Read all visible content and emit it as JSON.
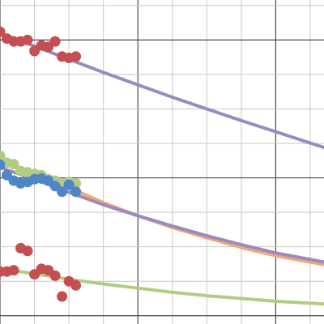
{
  "chart_data": {
    "type": "scatter",
    "title": "",
    "xlabel": "",
    "ylabel": "",
    "xlim": [
      0,
      23.5
    ],
    "ylim": [
      -0.6,
      22.9
    ],
    "grid": true,
    "minor_step": 2.5,
    "major_step": 10,
    "legend": "none",
    "colors": {
      "red": "#c44e52",
      "purple": "#9a8bbf",
      "orange": "#f2a774",
      "green": "#b3cc82",
      "blue": "#4f86c6"
    },
    "series": [
      {
        "color": "red",
        "points": [
          [
            0,
            20.6
          ],
          [
            0.5,
            20.1
          ],
          [
            1.0,
            19.9
          ],
          [
            1.5,
            19.9
          ],
          [
            2.0,
            20.0
          ],
          [
            2.5,
            19.2
          ],
          [
            3.0,
            19.6
          ],
          [
            3.5,
            19.5
          ],
          [
            4.0,
            19.9
          ],
          [
            4.5,
            18.8
          ],
          [
            5.0,
            18.7
          ],
          [
            5.5,
            18.8
          ]
        ]
      },
      {
        "color": "purple",
        "curve": [
          [
            0,
            20.5
          ],
          [
            2.5,
            19.55
          ],
          [
            5,
            18.6
          ],
          [
            7.5,
            17.65
          ],
          [
            10,
            16.75
          ],
          [
            12.5,
            15.85
          ],
          [
            15,
            15.0
          ],
          [
            17.5,
            14.15
          ],
          [
            20,
            13.35
          ],
          [
            23.5,
            12.2
          ]
        ]
      },
      {
        "color": "green",
        "points": [
          [
            0,
            11.6
          ],
          [
            0.5,
            11.1
          ],
          [
            1.0,
            11.0
          ],
          [
            1.5,
            10.5
          ],
          [
            2.0,
            10.4
          ],
          [
            2.5,
            10.3
          ],
          [
            3.0,
            10.2
          ],
          [
            3.5,
            9.9
          ],
          [
            4.0,
            9.8
          ],
          [
            4.5,
            9.6
          ],
          [
            5.0,
            9.7
          ],
          [
            5.5,
            9.6
          ]
        ]
      },
      {
        "color": "orange",
        "curve": [
          [
            0,
            11.2
          ],
          [
            2.5,
            10.35
          ],
          [
            5,
            9.3
          ],
          [
            7.5,
            8.2
          ],
          [
            10,
            7.25
          ],
          [
            12.5,
            6.4
          ],
          [
            15,
            5.65
          ],
          [
            17.5,
            4.95
          ],
          [
            20,
            4.35
          ],
          [
            23.5,
            3.7
          ]
        ]
      },
      {
        "color": "blue",
        "points": [
          [
            0,
            10.95
          ],
          [
            0.5,
            10.2
          ],
          [
            1.0,
            9.8
          ],
          [
            1.5,
            9.6
          ],
          [
            2.0,
            9.7
          ],
          [
            2.5,
            9.9
          ],
          [
            3.0,
            9.95
          ],
          [
            3.5,
            9.8
          ],
          [
            4.0,
            9.4
          ],
          [
            4.5,
            9.0
          ],
          [
            5.0,
            9.5
          ],
          [
            5.5,
            9.0
          ]
        ]
      },
      {
        "color": "purple",
        "curve": [
          [
            0,
            10.75
          ],
          [
            2.5,
            9.9
          ],
          [
            5,
            8.95
          ],
          [
            7.5,
            8.05
          ],
          [
            10,
            7.25
          ],
          [
            12.5,
            6.5
          ],
          [
            15,
            5.8
          ],
          [
            17.5,
            5.15
          ],
          [
            20,
            4.55
          ],
          [
            23.5,
            3.9
          ]
        ]
      },
      {
        "color": "red",
        "points": [
          [
            0,
            3.2
          ],
          [
            0.5,
            3.2
          ],
          [
            1.0,
            3.3
          ],
          [
            1.5,
            4.9
          ],
          [
            2.0,
            4.7
          ],
          [
            2.5,
            3.0
          ],
          [
            3.0,
            3.4
          ],
          [
            3.5,
            3.3
          ],
          [
            4.0,
            2.9
          ],
          [
            4.5,
            1.4
          ],
          [
            5.0,
            2.5
          ],
          [
            5.5,
            2.2
          ]
        ]
      },
      {
        "color": "green",
        "curve": [
          [
            0,
            3.4
          ],
          [
            2.5,
            3.05
          ],
          [
            5,
            2.65
          ],
          [
            7.5,
            2.3
          ],
          [
            10,
            2.0
          ],
          [
            12.5,
            1.7
          ],
          [
            15,
            1.45
          ],
          [
            17.5,
            1.25
          ],
          [
            20,
            1.05
          ],
          [
            23.5,
            0.85
          ]
        ]
      }
    ]
  }
}
